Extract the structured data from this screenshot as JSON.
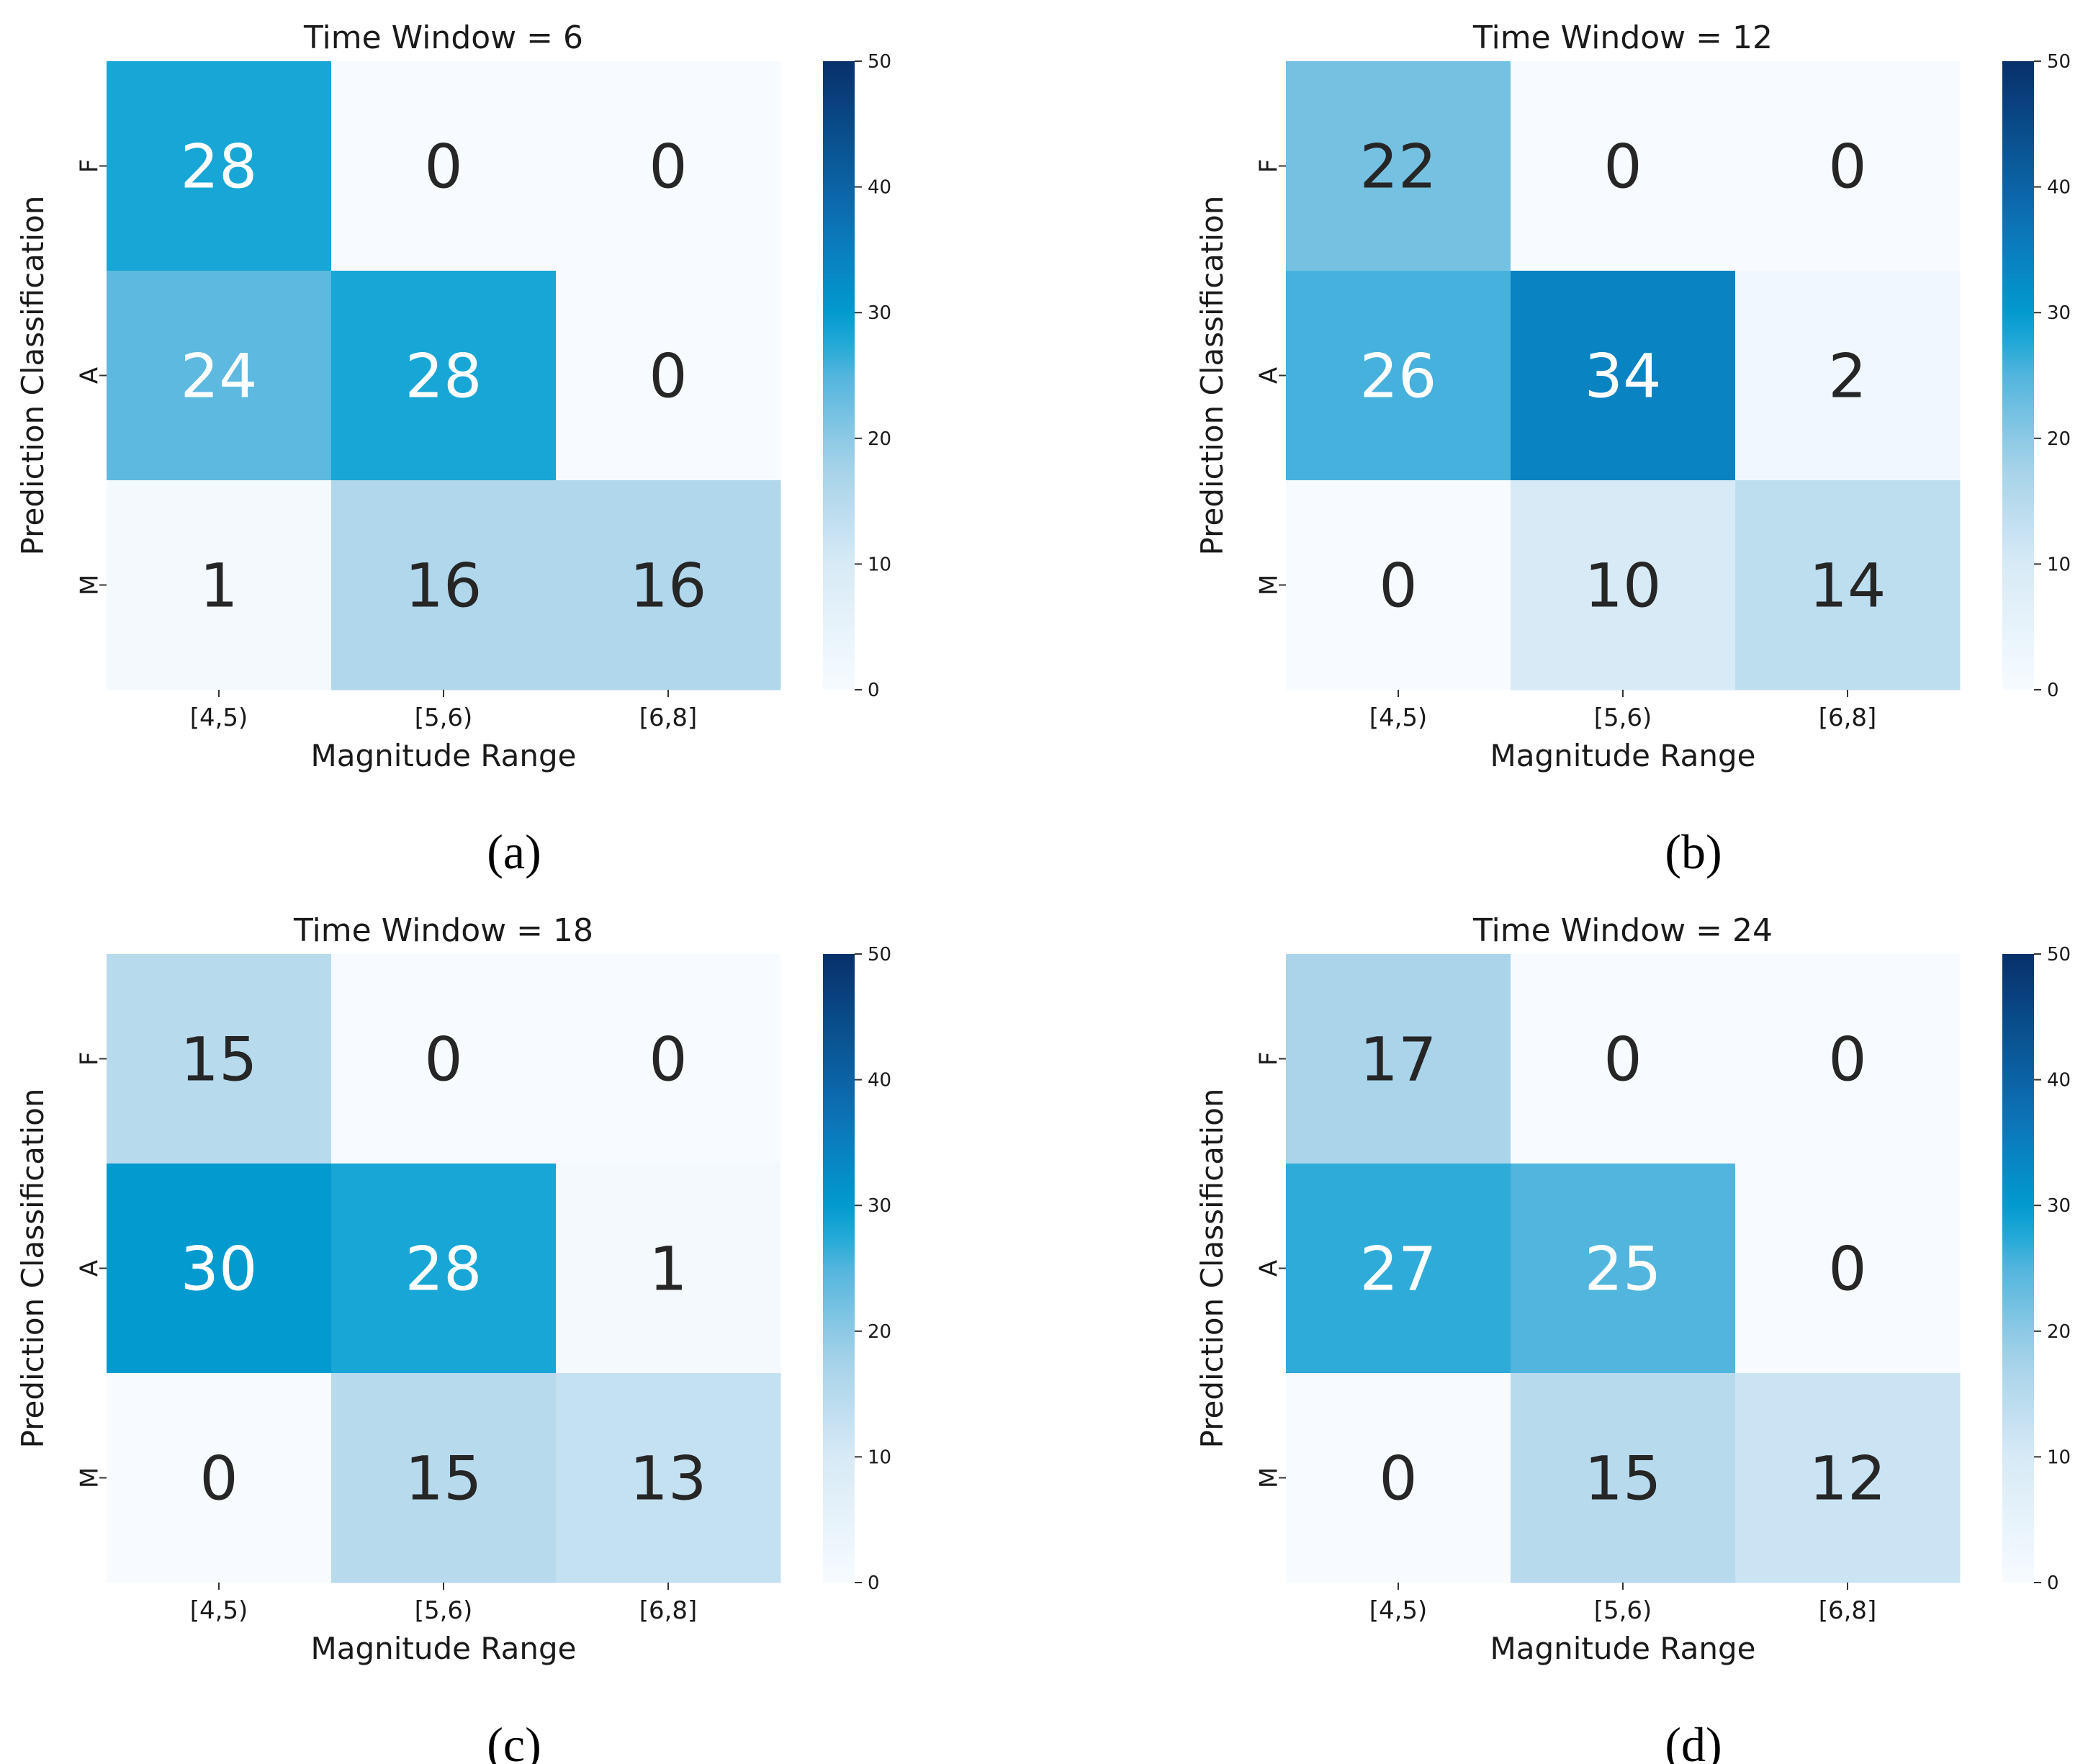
{
  "chart_data": [
    {
      "type": "heatmap",
      "panel_label": "(a)",
      "title": "Time Window = 6",
      "xlabel": "Magnitude Range",
      "ylabel": "Prediction Classification",
      "x_categories": [
        "[4,5)",
        "[5,6)",
        "[6,8]"
      ],
      "y_categories": [
        "F",
        "A",
        "M"
      ],
      "values": [
        [
          28,
          0,
          0
        ],
        [
          24,
          28,
          0
        ],
        [
          1,
          16,
          16
        ]
      ],
      "value_labels": [
        [
          "28",
          "0",
          "0"
        ],
        [
          "24",
          "28",
          "0"
        ],
        [
          "1",
          "16",
          "16"
        ]
      ],
      "colorbar": {
        "range": [
          0,
          50
        ],
        "ticks": [
          "0",
          "10",
          "20",
          "30",
          "40",
          "50"
        ]
      }
    },
    {
      "type": "heatmap",
      "panel_label": "(b)",
      "title": "Time Window = 12",
      "xlabel": "Magnitude Range",
      "ylabel": "Prediction Classification",
      "x_categories": [
        "[4,5)",
        "[5,6)",
        "[6,8]"
      ],
      "y_categories": [
        "F",
        "A",
        "M"
      ],
      "values": [
        [
          22,
          0,
          0
        ],
        [
          26,
          34,
          2
        ],
        [
          0,
          10,
          14
        ]
      ],
      "value_labels": [
        [
          "22",
          "0",
          "0"
        ],
        [
          "26",
          "34",
          "2"
        ],
        [
          "0",
          "10",
          "14"
        ]
      ],
      "colorbar": {
        "range": [
          0,
          50
        ],
        "ticks": [
          "0",
          "10",
          "20",
          "30",
          "40",
          "50"
        ]
      }
    },
    {
      "type": "heatmap",
      "panel_label": "(c)",
      "title": "Time Window = 18",
      "xlabel": "Magnitude Range",
      "ylabel": "Prediction Classification",
      "x_categories": [
        "[4,5)",
        "[5,6)",
        "[6,8]"
      ],
      "y_categories": [
        "F",
        "A",
        "M"
      ],
      "values": [
        [
          15,
          0,
          0
        ],
        [
          30,
          28,
          1
        ],
        [
          0,
          15,
          13
        ]
      ],
      "value_labels": [
        [
          "15",
          "0",
          "0"
        ],
        [
          "30",
          "28",
          "1"
        ],
        [
          "0",
          "15",
          "13"
        ]
      ],
      "colorbar": {
        "range": [
          0,
          50
        ],
        "ticks": [
          "0",
          "10",
          "20",
          "30",
          "40",
          "50"
        ]
      }
    },
    {
      "type": "heatmap",
      "panel_label": "(d)",
      "title": "Time Window = 24",
      "xlabel": "Magnitude Range",
      "ylabel": "Prediction Classification",
      "x_categories": [
        "[4,5)",
        "[5,6)",
        "[6,8]"
      ],
      "y_categories": [
        "F",
        "A",
        "M"
      ],
      "values": [
        [
          17,
          0,
          0
        ],
        [
          27,
          25,
          0
        ],
        [
          0,
          15,
          12
        ]
      ],
      "value_labels": [
        [
          "17",
          "0",
          "0"
        ],
        [
          "27",
          "25",
          "0"
        ],
        [
          "0",
          "15",
          "12"
        ]
      ],
      "colorbar": {
        "range": [
          0,
          50
        ],
        "ticks": [
          "0",
          "10",
          "20",
          "30",
          "40",
          "50"
        ]
      }
    }
  ],
  "colors": {
    "colormap_stops": [
      "#f7fbff",
      "#d7eaf6",
      "#a3d1e8",
      "#46b1dc",
      "#00a0d2",
      "#0c78bc",
      "#08306b"
    ],
    "text_dark": "#262626",
    "text_light": "#ffffff",
    "axis_text": "#1a1a1a"
  }
}
